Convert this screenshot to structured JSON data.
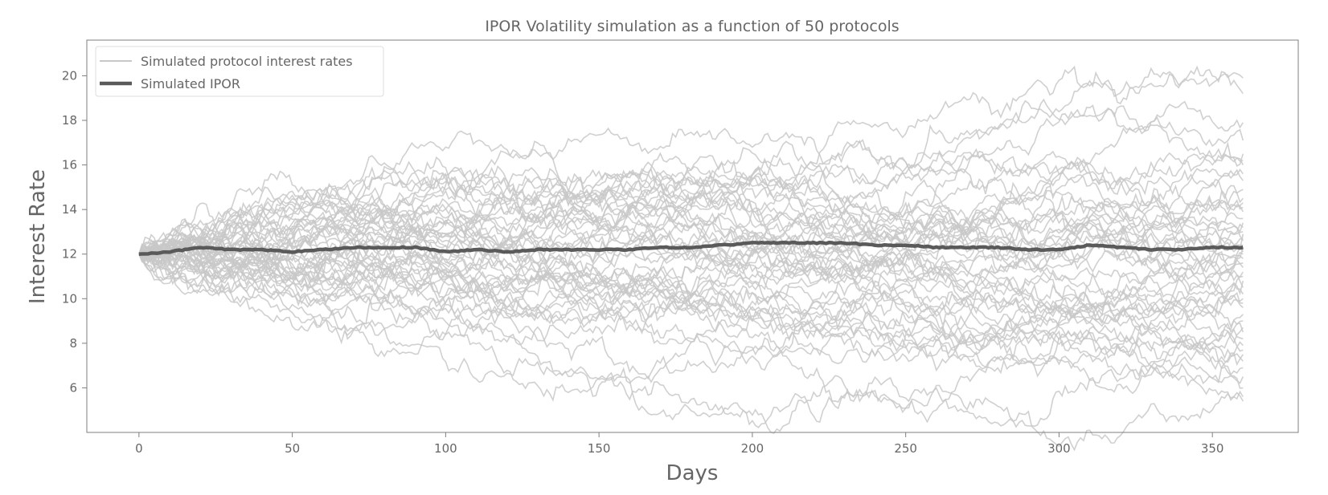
{
  "chart_data": {
    "type": "line",
    "title": "IPOR Volatility simulation as a function of 50 protocols",
    "xlabel": "Days",
    "ylabel": "Interest Rate",
    "xlim": [
      -17,
      378
    ],
    "ylim": [
      4.0,
      21.6
    ],
    "xticks": [
      0,
      50,
      100,
      150,
      200,
      250,
      300,
      350
    ],
    "yticks": [
      6,
      8,
      10,
      12,
      14,
      16,
      18,
      20
    ],
    "grid": false,
    "legend": {
      "placement": "top-left",
      "entries": [
        "Simulated protocol interest rates",
        "Simulated IPOR"
      ]
    },
    "protocol_count": 50,
    "series": [
      {
        "name": "Simulated IPOR",
        "x": [
          0,
          10,
          20,
          30,
          40,
          50,
          60,
          70,
          80,
          90,
          100,
          110,
          120,
          130,
          140,
          150,
          160,
          170,
          180,
          190,
          200,
          210,
          220,
          230,
          240,
          250,
          260,
          270,
          280,
          290,
          300,
          310,
          320,
          330,
          340,
          350,
          360
        ],
        "values": [
          12.0,
          12.1,
          12.3,
          12.2,
          12.2,
          12.1,
          12.2,
          12.3,
          12.3,
          12.3,
          12.1,
          12.2,
          12.1,
          12.2,
          12.2,
          12.2,
          12.2,
          12.3,
          12.3,
          12.4,
          12.5,
          12.5,
          12.5,
          12.5,
          12.4,
          12.4,
          12.3,
          12.3,
          12.3,
          12.2,
          12.2,
          12.4,
          12.3,
          12.2,
          12.2,
          12.3,
          12.3
        ]
      }
    ],
    "protocol_final_values": [
      19.9,
      19.2,
      17.9,
      17.1,
      16.5,
      16.2,
      16.0,
      15.6,
      15.3,
      14.9,
      14.5,
      14.3,
      14.1,
      13.9,
      13.6,
      13.4,
      13.2,
      13.0,
      12.9,
      12.7,
      12.6,
      12.4,
      12.3,
      12.1,
      12.0,
      11.8,
      11.6,
      11.4,
      11.2,
      11.0,
      10.8,
      10.5,
      10.2,
      10.0,
      9.8,
      9.6,
      9.3,
      9.0,
      8.7,
      8.5,
      8.2,
      7.9,
      7.7,
      7.5,
      7.2,
      6.9,
      6.5,
      6.0,
      5.6,
      5.4
    ],
    "colors": {
      "protocol_line": "#c8c8c8",
      "ipor_line": "#5a5a5a",
      "text": "#666666",
      "axes": "#7f7f7f"
    }
  }
}
